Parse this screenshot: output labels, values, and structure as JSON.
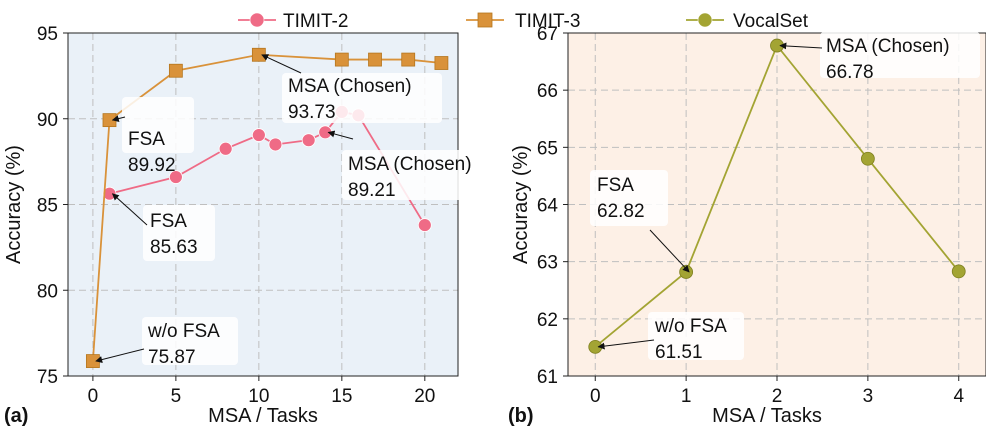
{
  "legend": {
    "items": [
      {
        "label": "TIMIT-2",
        "color": "#ef6b86",
        "marker": "circle"
      },
      {
        "label": "TIMIT-3",
        "color": "#d9923a",
        "marker": "square"
      },
      {
        "label": "VocalSet",
        "color": "#a3a433",
        "marker": "circle"
      }
    ]
  },
  "chart_data": [
    {
      "type": "line",
      "panel_label": "(a)",
      "xlabel": "MSA / Tasks",
      "ylabel": "Accuracy (%)",
      "xlim": [
        -1.5,
        22
      ],
      "ylim": [
        75,
        95
      ],
      "xticks": [
        0,
        5,
        10,
        15,
        20
      ],
      "yticks": [
        75,
        80,
        85,
        90,
        95
      ],
      "grid": true,
      "background": "#eaf1f8",
      "series": [
        {
          "name": "TIMIT-2",
          "color": "#ef6b86",
          "marker": "circle",
          "x": [
            1,
            5,
            8,
            10,
            11,
            13,
            14,
            15,
            16,
            20
          ],
          "y": [
            85.63,
            86.6,
            88.25,
            89.05,
            88.5,
            88.75,
            89.21,
            90.4,
            90.2,
            83.8
          ]
        },
        {
          "name": "TIMIT-3",
          "color": "#d9923a",
          "marker": "square",
          "x": [
            0,
            1,
            5,
            10,
            15,
            17,
            19,
            21
          ],
          "y": [
            75.87,
            89.92,
            92.8,
            93.73,
            93.45,
            93.45,
            93.45,
            93.25
          ]
        }
      ],
      "annotations": [
        {
          "lines": [
            "MSA (Chosen)",
            "93.73"
          ],
          "x": 10,
          "y": 93.73
        },
        {
          "lines": [
            "FSA",
            "89.92"
          ],
          "x": 1,
          "y": 89.92
        },
        {
          "lines": [
            "MSA (Chosen)",
            "89.21"
          ],
          "x": 14,
          "y": 89.21
        },
        {
          "lines": [
            "FSA",
            "85.63"
          ],
          "x": 1,
          "y": 85.63
        },
        {
          "lines": [
            "w/o FSA",
            "75.87"
          ],
          "x": 0,
          "y": 75.87
        }
      ]
    },
    {
      "type": "line",
      "panel_label": "(b)",
      "xlabel": "MSA / Tasks",
      "ylabel": "Accuracy (%)",
      "xlim": [
        -0.3,
        4.3
      ],
      "ylim": [
        61,
        67
      ],
      "xticks": [
        0,
        1,
        2,
        3,
        4
      ],
      "yticks": [
        61,
        62,
        63,
        64,
        65,
        66,
        67
      ],
      "grid": true,
      "background": "#fdf0e6",
      "series": [
        {
          "name": "VocalSet",
          "color": "#a3a433",
          "marker": "circle",
          "x": [
            0,
            1,
            2,
            3,
            4
          ],
          "y": [
            61.51,
            62.82,
            66.78,
            64.8,
            62.83
          ]
        }
      ],
      "annotations": [
        {
          "lines": [
            "MSA (Chosen)",
            "66.78"
          ],
          "x": 2,
          "y": 66.78
        },
        {
          "lines": [
            "FSA",
            "62.82"
          ],
          "x": 1,
          "y": 62.82
        },
        {
          "lines": [
            "w/o FSA",
            "61.51"
          ],
          "x": 0,
          "y": 61.51
        }
      ]
    }
  ]
}
